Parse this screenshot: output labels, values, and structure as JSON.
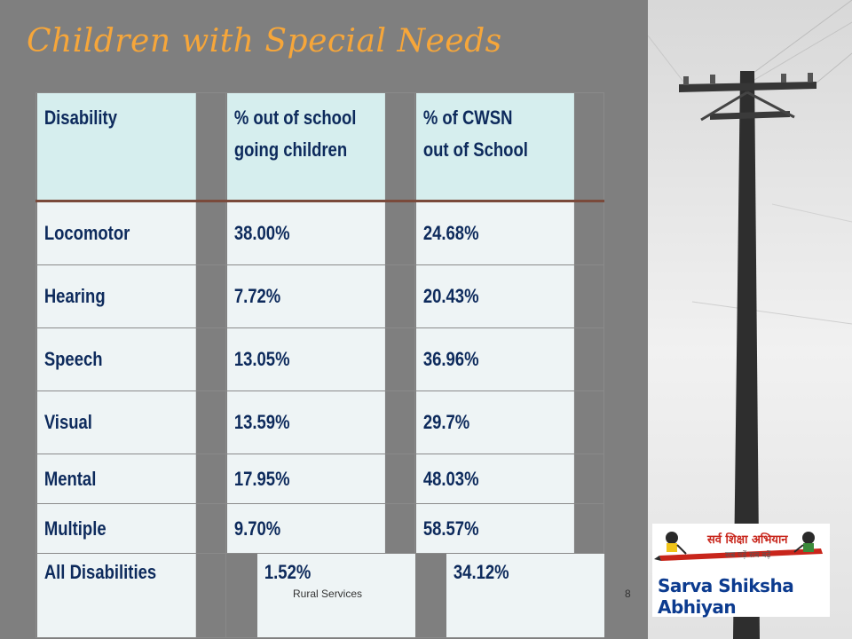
{
  "slide": {
    "title": "Children with Special Needs"
  },
  "table": {
    "headers": [
      [
        "Disability"
      ],
      [
        "% out of school",
        "going children"
      ],
      [
        "% of CWSN",
        "out of School"
      ]
    ],
    "rows": [
      {
        "disability": "Locomotor",
        "pct_out_of_school": "38.00%",
        "pct_cwsn_out": "24.68%"
      },
      {
        "disability": "Hearing",
        "pct_out_of_school": "7.72%",
        "pct_cwsn_out": "20.43%"
      },
      {
        "disability": "Speech",
        "pct_out_of_school": "13.05%",
        "pct_cwsn_out": "36.96%"
      },
      {
        "disability": "Visual",
        "pct_out_of_school": "13.59%",
        "pct_cwsn_out": "29.7%"
      },
      {
        "disability": "Mental",
        "pct_out_of_school": "17.95%",
        "pct_cwsn_out": "48.03%"
      },
      {
        "disability": "Multiple",
        "pct_out_of_school": "9.70%",
        "pct_cwsn_out": "58.57%"
      }
    ],
    "total": {
      "disability": "All Disabilities",
      "pct_out_of_school": "1.52%",
      "pct_cwsn_out": "34.12%"
    }
  },
  "footer": {
    "center_text": "Rural Services",
    "slide_number": "8"
  },
  "logo": {
    "hindi_text": "सर्व शिक्षा अभियान",
    "hindi_tagline": "सब पढ़ें सब बढ़ें",
    "name": "Sarva Shiksha Abhiyan"
  },
  "colors": {
    "title": "#f6a63a",
    "background": "#7f7f7f",
    "table_text": "#0d2a5c",
    "header_bg": "#d6eeee",
    "cell_bg": "#eef4f5",
    "logo_text": "#0c3b8f"
  }
}
